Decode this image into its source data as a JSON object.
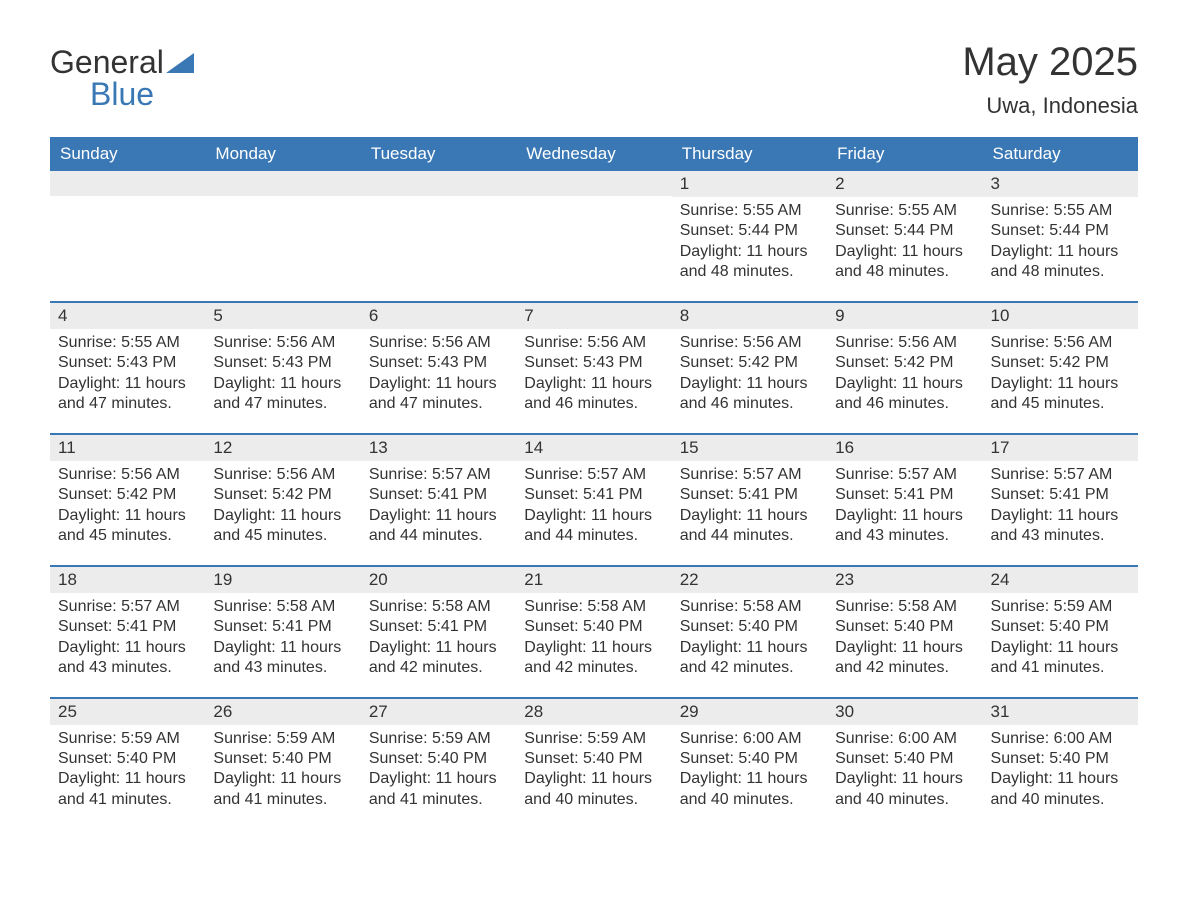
{
  "brand": {
    "name_part1": "General",
    "name_part2": "Blue",
    "logo_color": "#3a78b5",
    "text_color": "#333333"
  },
  "title": "May 2025",
  "location": "Uwa, Indonesia",
  "colors": {
    "header_bg": "#3a78b5",
    "header_fg": "#ffffff",
    "row_accent": "#3a78b5",
    "daynum_bg": "#ececec",
    "text": "#333333",
    "background": "#ffffff"
  },
  "day_labels": [
    "Sunday",
    "Monday",
    "Tuesday",
    "Wednesday",
    "Thursday",
    "Friday",
    "Saturday"
  ],
  "label_sunrise": "Sunrise: ",
  "label_sunset": "Sunset: ",
  "label_daylight": "Daylight: ",
  "weeks": [
    [
      {
        "empty": true
      },
      {
        "empty": true
      },
      {
        "empty": true
      },
      {
        "empty": true
      },
      {
        "day": "1",
        "sunrise": "5:55 AM",
        "sunset": "5:44 PM",
        "daylight": "11 hours and 48 minutes."
      },
      {
        "day": "2",
        "sunrise": "5:55 AM",
        "sunset": "5:44 PM",
        "daylight": "11 hours and 48 minutes."
      },
      {
        "day": "3",
        "sunrise": "5:55 AM",
        "sunset": "5:44 PM",
        "daylight": "11 hours and 48 minutes."
      }
    ],
    [
      {
        "day": "4",
        "sunrise": "5:55 AM",
        "sunset": "5:43 PM",
        "daylight": "11 hours and 47 minutes."
      },
      {
        "day": "5",
        "sunrise": "5:56 AM",
        "sunset": "5:43 PM",
        "daylight": "11 hours and 47 minutes."
      },
      {
        "day": "6",
        "sunrise": "5:56 AM",
        "sunset": "5:43 PM",
        "daylight": "11 hours and 47 minutes."
      },
      {
        "day": "7",
        "sunrise": "5:56 AM",
        "sunset": "5:43 PM",
        "daylight": "11 hours and 46 minutes."
      },
      {
        "day": "8",
        "sunrise": "5:56 AM",
        "sunset": "5:42 PM",
        "daylight": "11 hours and 46 minutes."
      },
      {
        "day": "9",
        "sunrise": "5:56 AM",
        "sunset": "5:42 PM",
        "daylight": "11 hours and 46 minutes."
      },
      {
        "day": "10",
        "sunrise": "5:56 AM",
        "sunset": "5:42 PM",
        "daylight": "11 hours and 45 minutes."
      }
    ],
    [
      {
        "day": "11",
        "sunrise": "5:56 AM",
        "sunset": "5:42 PM",
        "daylight": "11 hours and 45 minutes."
      },
      {
        "day": "12",
        "sunrise": "5:56 AM",
        "sunset": "5:42 PM",
        "daylight": "11 hours and 45 minutes."
      },
      {
        "day": "13",
        "sunrise": "5:57 AM",
        "sunset": "5:41 PM",
        "daylight": "11 hours and 44 minutes."
      },
      {
        "day": "14",
        "sunrise": "5:57 AM",
        "sunset": "5:41 PM",
        "daylight": "11 hours and 44 minutes."
      },
      {
        "day": "15",
        "sunrise": "5:57 AM",
        "sunset": "5:41 PM",
        "daylight": "11 hours and 44 minutes."
      },
      {
        "day": "16",
        "sunrise": "5:57 AM",
        "sunset": "5:41 PM",
        "daylight": "11 hours and 43 minutes."
      },
      {
        "day": "17",
        "sunrise": "5:57 AM",
        "sunset": "5:41 PM",
        "daylight": "11 hours and 43 minutes."
      }
    ],
    [
      {
        "day": "18",
        "sunrise": "5:57 AM",
        "sunset": "5:41 PM",
        "daylight": "11 hours and 43 minutes."
      },
      {
        "day": "19",
        "sunrise": "5:58 AM",
        "sunset": "5:41 PM",
        "daylight": "11 hours and 43 minutes."
      },
      {
        "day": "20",
        "sunrise": "5:58 AM",
        "sunset": "5:41 PM",
        "daylight": "11 hours and 42 minutes."
      },
      {
        "day": "21",
        "sunrise": "5:58 AM",
        "sunset": "5:40 PM",
        "daylight": "11 hours and 42 minutes."
      },
      {
        "day": "22",
        "sunrise": "5:58 AM",
        "sunset": "5:40 PM",
        "daylight": "11 hours and 42 minutes."
      },
      {
        "day": "23",
        "sunrise": "5:58 AM",
        "sunset": "5:40 PM",
        "daylight": "11 hours and 42 minutes."
      },
      {
        "day": "24",
        "sunrise": "5:59 AM",
        "sunset": "5:40 PM",
        "daylight": "11 hours and 41 minutes."
      }
    ],
    [
      {
        "day": "25",
        "sunrise": "5:59 AM",
        "sunset": "5:40 PM",
        "daylight": "11 hours and 41 minutes."
      },
      {
        "day": "26",
        "sunrise": "5:59 AM",
        "sunset": "5:40 PM",
        "daylight": "11 hours and 41 minutes."
      },
      {
        "day": "27",
        "sunrise": "5:59 AM",
        "sunset": "5:40 PM",
        "daylight": "11 hours and 41 minutes."
      },
      {
        "day": "28",
        "sunrise": "5:59 AM",
        "sunset": "5:40 PM",
        "daylight": "11 hours and 40 minutes."
      },
      {
        "day": "29",
        "sunrise": "6:00 AM",
        "sunset": "5:40 PM",
        "daylight": "11 hours and 40 minutes."
      },
      {
        "day": "30",
        "sunrise": "6:00 AM",
        "sunset": "5:40 PM",
        "daylight": "11 hours and 40 minutes."
      },
      {
        "day": "31",
        "sunrise": "6:00 AM",
        "sunset": "5:40 PM",
        "daylight": "11 hours and 40 minutes."
      }
    ]
  ]
}
